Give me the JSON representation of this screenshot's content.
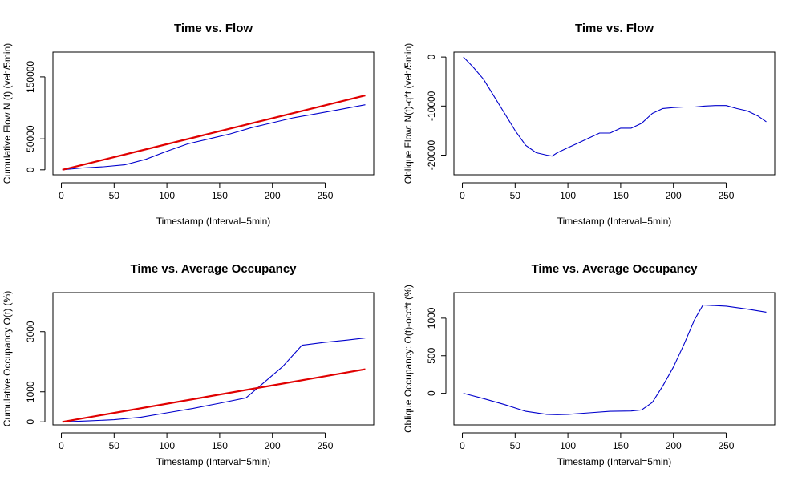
{
  "chart_data": [
    {
      "type": "line",
      "title": "Time vs. Flow",
      "xlabel": "Timestamp (Interval=5min)",
      "ylabel": "Cumulative Flow N (t) (veh/5min)",
      "xlim": [
        -8,
        296
      ],
      "ylim": [
        -8000,
        190000
      ],
      "xticks": [
        0,
        50,
        100,
        150,
        200,
        250
      ],
      "yticks": [
        0,
        50000,
        150000
      ],
      "grid": false,
      "series": [
        {
          "color": "#0000cc",
          "x": [
            1,
            20,
            40,
            60,
            80,
            100,
            120,
            140,
            160,
            180,
            200,
            220,
            240,
            260,
            288
          ],
          "y": [
            0,
            3000,
            5000,
            8000,
            17000,
            30000,
            42000,
            50000,
            58000,
            68000,
            76000,
            84000,
            90000,
            96000,
            105000
          ]
        },
        {
          "color": "#e00000",
          "x": [
            1,
            288
          ],
          "y": [
            0,
            120000
          ]
        }
      ]
    },
    {
      "type": "line",
      "title": "Time vs. Flow",
      "xlabel": "Timestamp (Interval=5min)",
      "ylabel": "Oblique Flow: N(t)-q*t (veh/5min)",
      "xlim": [
        -8,
        296
      ],
      "ylim": [
        -24000,
        1000
      ],
      "xticks": [
        0,
        50,
        100,
        150,
        200,
        250
      ],
      "yticks": [
        0,
        -10000,
        -20000
      ],
      "grid": false,
      "series": [
        {
          "color": "#0000cc",
          "x": [
            1,
            10,
            20,
            30,
            40,
            50,
            60,
            70,
            80,
            85,
            90,
            100,
            110,
            120,
            130,
            140,
            150,
            160,
            170,
            180,
            190,
            200,
            210,
            220,
            230,
            240,
            250,
            260,
            270,
            280,
            288
          ],
          "y": [
            0,
            -2000,
            -4500,
            -8000,
            -11500,
            -15000,
            -18000,
            -19500,
            -20000,
            -20200,
            -19500,
            -18500,
            -17500,
            -16500,
            -15500,
            -15500,
            -14500,
            -14500,
            -13500,
            -11500,
            -10500,
            -10300,
            -10200,
            -10200,
            -10000,
            -9900,
            -9900,
            -10500,
            -11000,
            -12000,
            -13200
          ]
        }
      ]
    },
    {
      "type": "line",
      "title": "Time vs. Average Occupancy",
      "xlabel": "Timestamp (Interval=5min)",
      "ylabel": "Cumulative Occupancy O(t) (%)",
      "xlim": [
        -8,
        296
      ],
      "ylim": [
        -100,
        4300
      ],
      "xticks": [
        0,
        50,
        100,
        150,
        200,
        250
      ],
      "yticks": [
        0,
        1000,
        3000
      ],
      "grid": false,
      "series": [
        {
          "color": "#0000cc",
          "x": [
            1,
            25,
            50,
            75,
            100,
            125,
            150,
            175,
            190,
            210,
            228,
            250,
            270,
            288
          ],
          "y": [
            0,
            30,
            70,
            150,
            300,
            450,
            620,
            800,
            1250,
            1850,
            2550,
            2650,
            2720,
            2790
          ]
        },
        {
          "color": "#e00000",
          "x": [
            1,
            288
          ],
          "y": [
            0,
            1750
          ]
        }
      ]
    },
    {
      "type": "line",
      "title": "Time vs. Average Occupancy",
      "xlabel": "Timestamp (Interval=5min)",
      "ylabel": "Oblique Occupancy: O(t)-occ*t (%)",
      "xlim": [
        -8,
        296
      ],
      "ylim": [
        -420,
        1340
      ],
      "xticks": [
        0,
        50,
        100,
        150,
        200,
        250
      ],
      "yticks": [
        0,
        500,
        1000
      ],
      "grid": false,
      "series": [
        {
          "color": "#0000cc",
          "x": [
            1,
            20,
            40,
            60,
            80,
            90,
            100,
            120,
            140,
            160,
            170,
            180,
            190,
            200,
            210,
            220,
            228,
            250,
            270,
            288
          ],
          "y": [
            0,
            -70,
            -150,
            -240,
            -280,
            -285,
            -280,
            -260,
            -240,
            -235,
            -220,
            -120,
            100,
            350,
            650,
            980,
            1175,
            1160,
            1120,
            1080
          ]
        }
      ]
    }
  ]
}
